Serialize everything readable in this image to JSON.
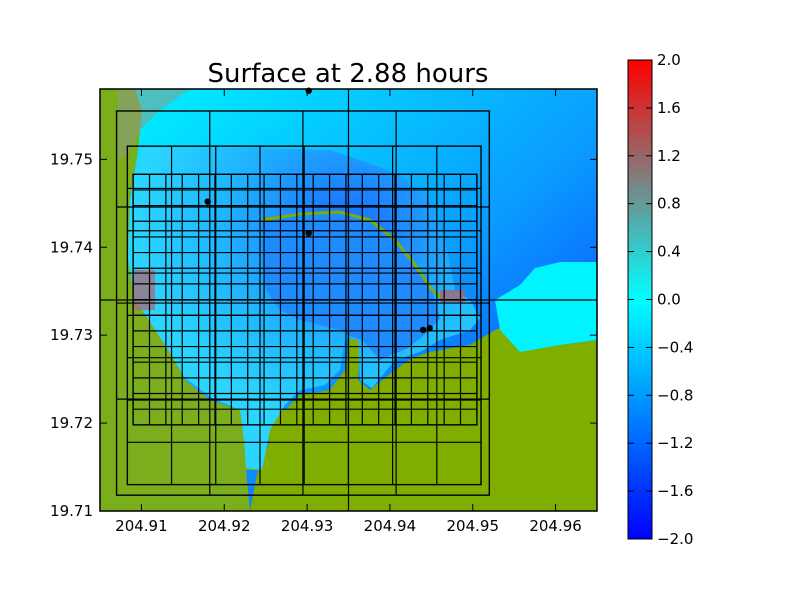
{
  "chart_data": {
    "type": "heatmap",
    "title": "Surface at 2.88 hours",
    "xlabel": "",
    "ylabel": "",
    "xlim": [
      204.905,
      204.965
    ],
    "ylim": [
      19.71,
      19.758
    ],
    "x_ticks": [
      204.91,
      204.92,
      204.93,
      204.94,
      204.95,
      204.96
    ],
    "x_tick_labels": [
      "204.91",
      "204.92",
      "204.93",
      "204.94",
      "204.95",
      "204.96"
    ],
    "y_ticks": [
      19.71,
      19.72,
      19.73,
      19.74,
      19.75
    ],
    "y_tick_labels": [
      "19.71",
      "19.72",
      "19.73",
      "19.74",
      "19.75"
    ],
    "colorbar": {
      "min": -2.0,
      "max": 2.0,
      "ticks": [
        2.0,
        1.6,
        1.2,
        0.8,
        0.4,
        0.0,
        -0.4,
        -0.8,
        -1.2,
        -1.6,
        -2.0
      ],
      "tick_labels": [
        "2.0",
        "1.6",
        "1.2",
        "0.8",
        "0.4",
        "0.0",
        "−0.4",
        "−0.8",
        "−1.2",
        "−1.6",
        "−2.0"
      ],
      "colors": [
        "#0000ff",
        "#00ffff",
        "#ff0000"
      ]
    },
    "land_color": "#7fae00",
    "grid_patches": [
      {
        "level": 1,
        "x0": 204.905,
        "x1": 204.965,
        "y0": 19.71,
        "y1": 19.758,
        "nx": 2,
        "ny": 2
      },
      {
        "level": 2,
        "x0": 204.907,
        "x1": 204.952,
        "y0": 19.7118,
        "y1": 19.7555,
        "nx": 4,
        "ny": 4
      },
      {
        "level": 3,
        "x0": 204.9083,
        "x1": 204.951,
        "y0": 19.713,
        "y1": 19.7515,
        "nx": 8,
        "ny": 8
      },
      {
        "level": 4,
        "x0": 204.909,
        "x1": 204.9505,
        "y0": 19.7198,
        "y1": 19.7483,
        "nx": 21,
        "ny": 16
      }
    ],
    "gauges": [
      {
        "x": 204.9302,
        "y": 19.7578
      },
      {
        "x": 204.918,
        "y": 19.7452
      },
      {
        "x": 204.9302,
        "y": 19.7416
      },
      {
        "x": 204.944,
        "y": 19.7306
      },
      {
        "x": 204.9448,
        "y": 19.7308
      }
    ]
  }
}
